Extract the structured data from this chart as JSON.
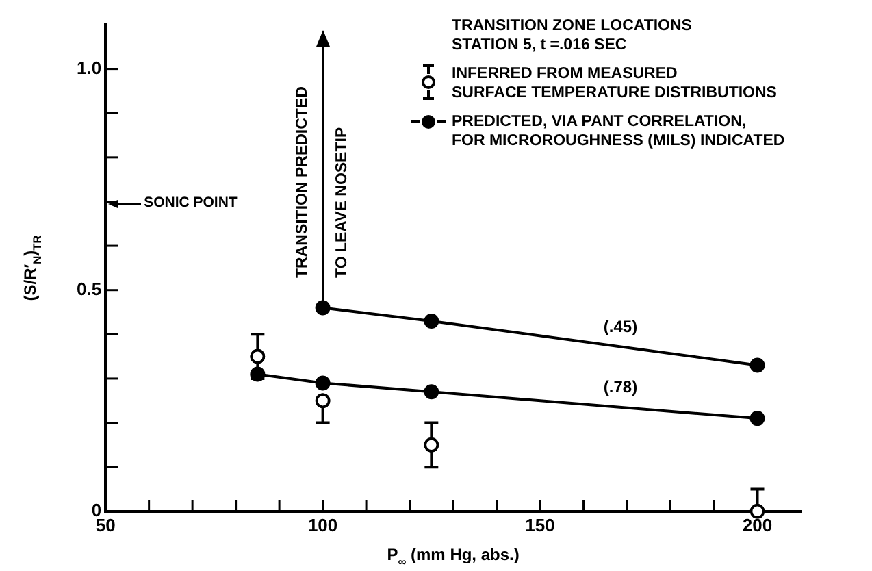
{
  "chart_data": {
    "type": "line",
    "xlabel": "P$_{∞}$ (mm Hg, abs.)",
    "ylabel": "(S/R′$_{N}$)$_{TR}$",
    "legend_title": "TRANSITION ZONE LOCATIONS\nSTATION 5,  t =.016 SEC",
    "legend": "top right",
    "marker": "circle",
    "grid": false,
    "xlim": [
      50,
      210
    ],
    "xticks": [
      50,
      {
        "value": 60,
        "label": null
      },
      {
        "value": 70,
        "label": null
      },
      {
        "value": 80,
        "label": null
      },
      {
        "value": 90,
        "label": null
      },
      100,
      {
        "value": 110,
        "label": null
      },
      {
        "value": 120,
        "label": null
      },
      {
        "value": 130,
        "label": null
      },
      {
        "value": 140,
        "label": null
      },
      150,
      {
        "value": 160,
        "label": null
      },
      {
        "value": 170,
        "label": null
      },
      {
        "value": 180,
        "label": null
      },
      {
        "value": 190,
        "label": null
      },
      200
    ],
    "ylim": [
      0,
      1.1
    ],
    "yticks": [
      0,
      {
        "value": 0.1,
        "label": null
      },
      {
        "value": 0.2,
        "label": null
      },
      {
        "value": 0.3,
        "label": null
      },
      {
        "value": 0.4,
        "label": null
      },
      0.5,
      {
        "value": 0.6,
        "label": null
      },
      {
        "value": 0.7,
        "label": null
      },
      {
        "value": 0.8,
        "label": null
      },
      {
        "value": 0.9,
        "label": null
      },
      {
        "value": 1.0,
        "label": "1.0"
      }
    ],
    "series": [
      {
        "name": "INFERRED FROM MEASURED\nSURFACE TEMPERATURE DISTRIBUTIONS",
        "type": "scatter",
        "color": "#000000",
        "x": [
          85,
          100,
          125,
          200
        ],
        "values": [
          0.35,
          0.25,
          0.15,
          0
        ],
        "errors": [
          [
            0.3,
            0.4
          ],
          [
            0.2,
            0.25
          ],
          [
            0.1,
            0.2
          ],
          [
            0,
            0.05
          ]
        ]
      },
      {
        "name": "PREDICTED, VIA PANT CORRELATION,\nFOR MICROROUGHNESS (MILS) INDICATED",
        "type": "line",
        "color": "#000000",
        "x": [
          100,
          125,
          200
        ],
        "values": [
          0.46,
          0.43,
          0.33
        ]
      },
      {
        "color": "#000000",
        "x": [
          85,
          100,
          125,
          200
        ],
        "values": [
          0.31,
          0.29,
          0.27,
          0.21
        ]
      }
    ],
    "annotations": [
      "SONIC POINT",
      "TRANSITION PREDICTED\nTO LEAVE NOSETIP",
      "(.45)",
      "(.78)"
    ]
  }
}
